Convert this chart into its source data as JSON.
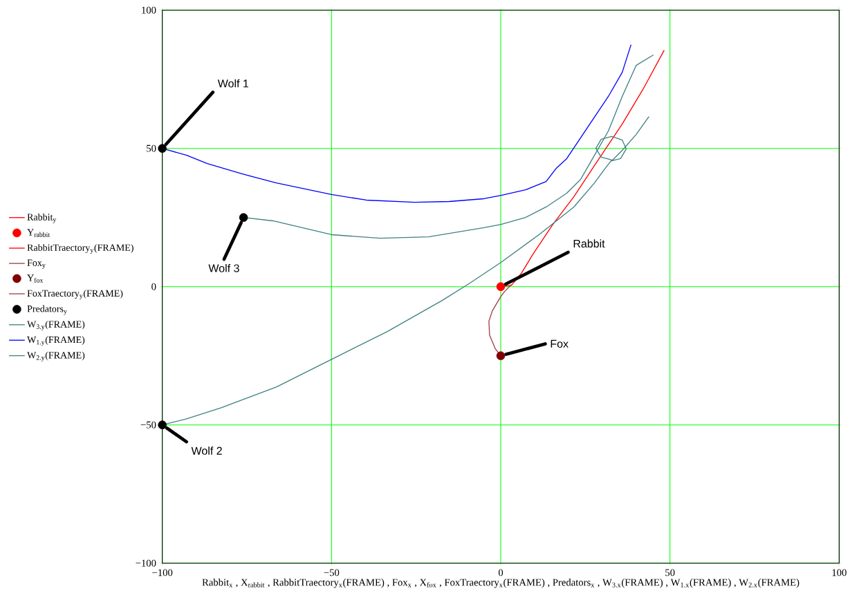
{
  "chart_data": {
    "type": "line",
    "xlabel": "Rabbit$_{x}$ , X$_{rabbit}$ , RabbitTraectory$_{x}$(FRAME) , Fox$_{x}$ , X$_{fox}$ , FoxTraectory$_{x}$(FRAME) , Predators$_{x}$ , W$_{3.x}$(FRAME) , W$_{1.x}$(FRAME) , W$_{2.x}$(FRAME)",
    "xlim": [
      -100,
      100
    ],
    "ylim": [
      -100,
      100
    ],
    "xticks": [
      {
        "value": -100,
        "label": "−100"
      },
      {
        "value": -50,
        "label": "−50"
      },
      0,
      50,
      100
    ],
    "yticks": [
      {
        "value": -100,
        "label": "−100"
      },
      {
        "value": -50,
        "label": "−50"
      },
      0,
      50,
      100
    ],
    "grid": true,
    "legend": "left",
    "series": [
      {
        "name": "Rabbit$_{y}$",
        "color": "#ff0000"
      },
      {
        "name": "Y$_{rabbit}$",
        "type": "scatter",
        "color": "#ff0000",
        "x": [
          0
        ],
        "values": [
          0
        ]
      },
      {
        "name": "RabbitTraectory$_{y}$(FRAME)",
        "color": "#ff0000",
        "x": [
          0,
          3.2,
          6.2,
          9.3,
          15.4,
          21.6,
          27.7,
          35.9,
          42,
          48.3
        ],
        "values": [
          0,
          0.5,
          5,
          11.3,
          22.5,
          32.5,
          43.8,
          58.8,
          71.3,
          85.5
        ]
      },
      {
        "name": "Fox$_{y}$",
        "color": "#a04040"
      },
      {
        "name": "Y$_{fox}$",
        "type": "scatter",
        "color": "#800000",
        "x": [
          0
        ],
        "values": [
          -25
        ]
      },
      {
        "name": "FoxTraectory$_{y}$(FRAME)",
        "color": "#a04040",
        "x": [
          0,
          -1.6,
          -3.3,
          -3.5,
          -2.5,
          -1.3,
          -0.1,
          1.1,
          3.2
        ],
        "values": [
          -25,
          -22.5,
          -17.5,
          -12.5,
          -8.8,
          -6.3,
          -3.8,
          -1.8,
          0.8
        ]
      },
      {
        "name": "Predators$_{y}$",
        "type": "scatter",
        "color": "#000000",
        "x": [
          -100,
          -76,
          -100
        ],
        "values": [
          50,
          25,
          -50
        ]
      },
      {
        "name": "W$_{3.y}$(FRAME)",
        "color": "#408080",
        "x": [
          -76,
          -67.3,
          -50,
          -35.6,
          -21.3,
          -5,
          0.1,
          7.3,
          13.4,
          19.5,
          23.6,
          27.7,
          31.8,
          35.9,
          40,
          45.1
        ],
        "values": [
          25,
          23.8,
          18.8,
          17.5,
          18,
          21.3,
          22.5,
          25,
          28.8,
          33.8,
          38.8,
          47.5,
          56.3,
          68.8,
          80,
          83.8
        ]
      },
      {
        "name": "W$_{1.y}$(FRAME)",
        "color": "#0000ff",
        "x": [
          -100,
          -92.8,
          -86.7,
          -76.5,
          -66.3,
          -50,
          -39.7,
          -25.4,
          -15.2,
          -5,
          0.1,
          7.3,
          13.4,
          16.4,
          19.5,
          23.6,
          27.7,
          31.8,
          35.9,
          38.5
        ],
        "values": [
          50,
          47.5,
          44.5,
          40.8,
          37.5,
          33.3,
          31.3,
          30.5,
          30.8,
          31.8,
          33,
          35,
          38,
          42.8,
          46.3,
          53.8,
          61.3,
          68.8,
          77.5,
          87.5
        ]
      },
      {
        "name": "W$_{2.y}$(FRAME)",
        "color": "#408080",
        "x": [
          -100,
          -92.8,
          -82.6,
          -66.3,
          -50,
          -33.6,
          -17.3,
          -9.1,
          0.1,
          11.3,
          21.6,
          27.7,
          30.7,
          32.8,
          29.7,
          28.1,
          29.7,
          32.8,
          35.9,
          37.1,
          35.4,
          32.8,
          35.9,
          40,
          43.8
        ],
        "values": [
          -50,
          -47.8,
          -43.8,
          -36.3,
          -26.3,
          -16.3,
          -5,
          1.3,
          8.8,
          18.8,
          28.8,
          37.5,
          42.5,
          45.8,
          46.8,
          50,
          53.3,
          54.3,
          53,
          49.8,
          46.3,
          45.5,
          49.3,
          55,
          61.5
        ]
      }
    ],
    "annotations": [
      {
        "text": "Wolf 1",
        "x": -100,
        "y": 50
      },
      {
        "text": "Wolf 3",
        "x": -76,
        "y": 25
      },
      {
        "text": "Rabbit",
        "x": 0,
        "y": 0
      },
      {
        "text": "Fox",
        "x": 0,
        "y": -25
      },
      {
        "text": "Wolf 2",
        "x": -100,
        "y": -50
      }
    ]
  }
}
